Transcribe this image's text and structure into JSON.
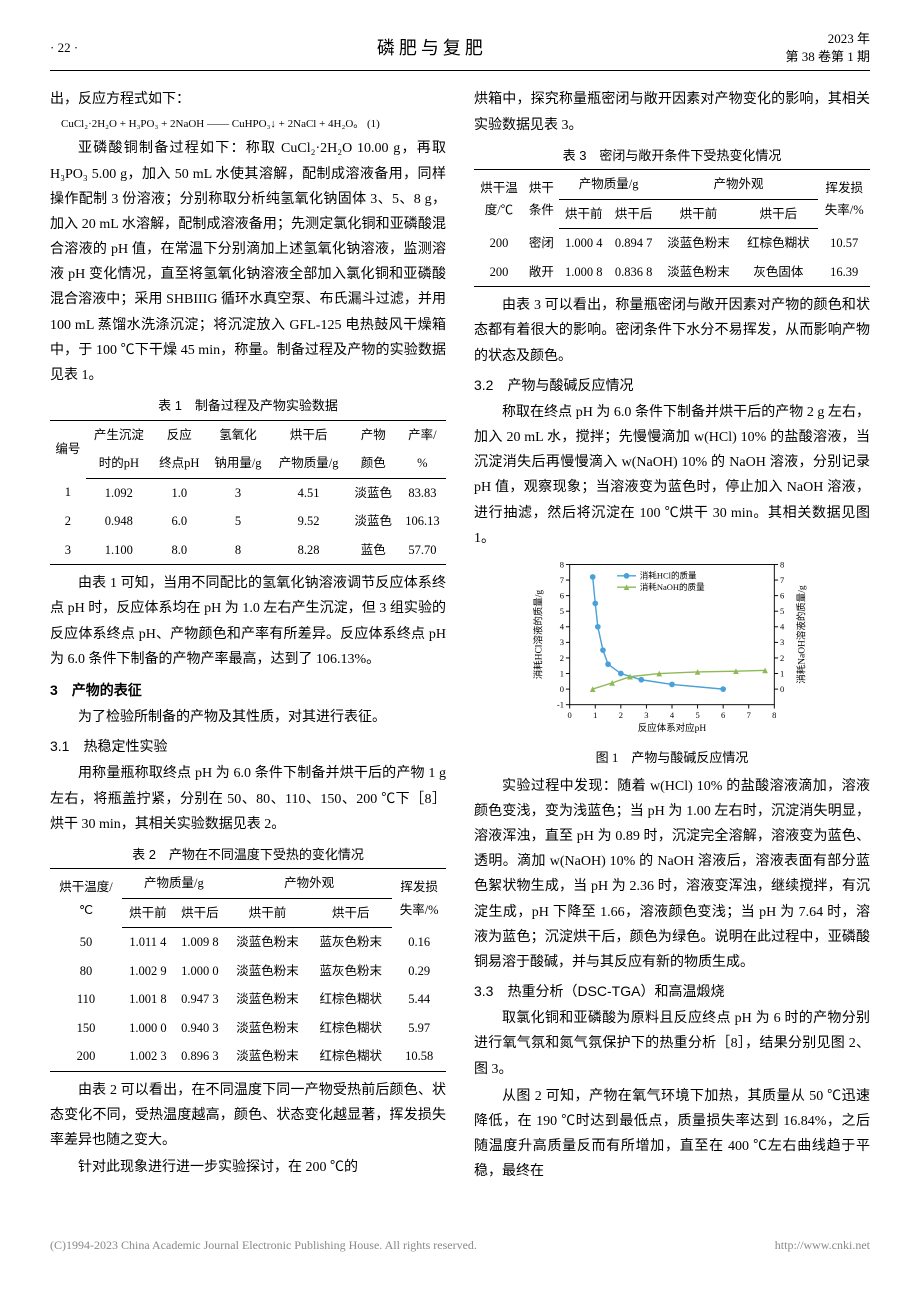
{
  "header": {
    "page_number": "22",
    "journal": "磷肥与复肥",
    "year_line": "2023 年",
    "vol_line": "第 38 卷第 1 期"
  },
  "left": {
    "p1": "出，反应方程式如下：",
    "eq": "CuCl₂·2H₂O + H₃PO₃ + 2NaOH —— CuHPO₃↓ + 2NaCl + 4H₂O。 (1)",
    "p2": "亚磷酸铜制备过程如下：称取 CuCl₂·2H₂O 10.00 g，再取 H₃PO₃ 5.00 g，加入 50 mL 水使其溶解，配制成溶液备用，同样操作配制 3 份溶液；分别称取分析纯氢氧化钠固体 3、5、8 g，加入 20 mL 水溶解，配制成溶液备用；先测定氯化铜和亚磷酸混合溶液的 pH 值，在常温下分别滴加上述氢氧化钠溶液，监测溶液 pH 变化情况，直至将氢氧化钠溶液全部加入氯化铜和亚磷酸混合溶液中；采用 SHBIIIG 循环水真空泵、布氏漏斗过滤，并用 100 mL 蒸馏水洗涤沉淀；将沉淀放入 GFL-125 电热鼓风干燥箱中，于 100 ℃下干燥 45 min，称量。制备过程及产物的实验数据见表 1。",
    "t1_caption": "表 1　制备过程及产物实验数据",
    "t1": {
      "headers_row1": [
        "编号",
        "产生沉淀时的pH",
        "反应终点pH",
        "氢氧化钠用量/g",
        "烘干后产物质量/g",
        "产物颜色",
        "产率/%"
      ],
      "rows": [
        [
          "1",
          "1.092",
          "1.0",
          "3",
          "4.51",
          "淡蓝色",
          "83.83"
        ],
        [
          "2",
          "0.948",
          "6.0",
          "5",
          "9.52",
          "淡蓝色",
          "106.13"
        ],
        [
          "3",
          "1.100",
          "8.0",
          "8",
          "8.28",
          "蓝色",
          "57.70"
        ]
      ]
    },
    "p3": "由表 1 可知，当用不同配比的氢氧化钠溶液调节反应体系终点 pH 时，反应体系均在 pH 为 1.0 左右产生沉淀，但 3 组实验的反应体系终点 pH、产物颜色和产率有所差异。反应体系终点 pH 为 6.0 条件下制备的产物产率最高，达到了 106.13%。",
    "s3_title": "3　产物的表征",
    "p4": "为了检验所制备的产物及其性质，对其进行表征。",
    "s31_title": "3.1　热稳定性实验",
    "p5": "用称量瓶称取终点 pH 为 6.0 条件下制备并烘干后的产物 1 g 左右，将瓶盖拧紧，分别在 50、80、110、150、200 ℃下［8］烘干 30 min，其相关实验数据见表 2。",
    "t2_caption": "表 2　产物在不同温度下受热的变化情况",
    "t2": {
      "headers_top": [
        "烘干温度/℃",
        "产物质量/g",
        "产物外观",
        "挥发损失率/%"
      ],
      "headers_sub": [
        "烘干前",
        "烘干后",
        "烘干前",
        "烘干后"
      ],
      "rows": [
        [
          "50",
          "1.011 4",
          "1.009 8",
          "淡蓝色粉末",
          "蓝灰色粉末",
          "0.16"
        ],
        [
          "80",
          "1.002 9",
          "1.000 0",
          "淡蓝色粉末",
          "蓝灰色粉末",
          "0.29"
        ],
        [
          "110",
          "1.001 8",
          "0.947 3",
          "淡蓝色粉末",
          "红棕色糊状",
          "5.44"
        ],
        [
          "150",
          "1.000 0",
          "0.940 3",
          "淡蓝色粉末",
          "红棕色糊状",
          "5.97"
        ],
        [
          "200",
          "1.002 3",
          "0.896 3",
          "淡蓝色粉末",
          "红棕色糊状",
          "10.58"
        ]
      ]
    },
    "p6": "由表 2 可以看出，在不同温度下同一产物受热前后颜色、状态变化不同，受热温度越高，颜色、状态变化越显著，挥发损失率差异也随之变大。",
    "p7": "针对此现象进行进一步实验探讨，在 200 ℃的"
  },
  "right": {
    "p1": "烘箱中，探究称量瓶密闭与敞开因素对产物变化的影响，其相关实验数据见表 3。",
    "t3_caption": "表 3　密闭与敞开条件下受热变化情况",
    "t3": {
      "headers_top": [
        "烘干温度/℃",
        "烘干条件",
        "产物质量/g",
        "产物外观",
        "挥发损失率/%"
      ],
      "headers_sub": [
        "烘干前",
        "烘干后",
        "烘干前",
        "烘干后"
      ],
      "rows": [
        [
          "200",
          "密闭",
          "1.000 4",
          "0.894 7",
          "淡蓝色粉末",
          "红棕色糊状",
          "10.57"
        ],
        [
          "200",
          "敞开",
          "1.000 8",
          "0.836 8",
          "淡蓝色粉末",
          "灰色固体",
          "16.39"
        ]
      ]
    },
    "p2": "由表 3 可以看出，称量瓶密闭与敞开因素对产物的颜色和状态都有着很大的影响。密闭条件下水分不易挥发，从而影响产物的状态及颜色。",
    "s32_title": "3.2　产物与酸碱反应情况",
    "p3": "称取在终点 pH 为 6.0 条件下制备并烘干后的产物 2 g 左右，加入 20 mL 水，搅拌；先慢慢滴加 w(HCl) 10% 的盐酸溶液，当沉淀消失后再慢慢滴入 w(NaOH) 10% 的 NaOH 溶液，分别记录 pH 值，观察现象；当溶液变为蓝色时，停止加入 NaOH 溶液，进行抽滤，然后将沉淀在 100 ℃烘干 30 min。其相关数据见图 1。",
    "fig1": {
      "type": "line-scatter",
      "xlabel": "反应体系对应pH",
      "ylabel_left": "消耗HCl溶液的质量/g",
      "ylabel_right": "消耗NaOH溶液的质量/g",
      "xlim": [
        0,
        8
      ],
      "ylim_left": [
        -1,
        8
      ],
      "ylim_right": [
        0,
        8
      ],
      "xticks": [
        0,
        1,
        2,
        3,
        4,
        5,
        6,
        7,
        8
      ],
      "yticks_left": [
        -1,
        0,
        1,
        2,
        3,
        4,
        5,
        6,
        7,
        8
      ],
      "legend": [
        "消耗HCl的质量",
        "消耗NaOH的质量"
      ],
      "series_hcl": {
        "color": "#4aa0d8",
        "marker": "circle",
        "x": [
          6.0,
          4.0,
          2.8,
          2.0,
          1.5,
          1.3,
          1.1,
          1.0,
          0.9
        ],
        "y": [
          0.0,
          0.3,
          0.6,
          1.0,
          1.6,
          2.5,
          4.0,
          5.5,
          7.2
        ]
      },
      "series_naoh": {
        "color": "#8fb958",
        "marker": "triangle",
        "x": [
          0.9,
          1.66,
          2.36,
          3.5,
          5.0,
          6.5,
          7.64
        ],
        "y": [
          0.0,
          0.4,
          0.8,
          1.0,
          1.1,
          1.15,
          1.2
        ]
      },
      "background_color": "#ffffff",
      "axis_color": "#000000",
      "tick_fontsize": 9
    },
    "fig1_caption": "图 1　产物与酸碱反应情况",
    "p4": "实验过程中发现：随着 w(HCl) 10% 的盐酸溶液滴加，溶液颜色变浅，变为浅蓝色；当 pH 为 1.00 左右时，沉淀消失明显，溶液浑浊，直至 pH 为 0.89 时，沉淀完全溶解，溶液变为蓝色、透明。滴加 w(NaOH) 10% 的 NaOH 溶液后，溶液表面有部分蓝色絮状物生成，当 pH 为 2.36 时，溶液变浑浊，继续搅拌，有沉淀生成，pH 下降至 1.66，溶液颜色变浅；当 pH 为 7.64 时，溶液为蓝色；沉淀烘干后，颜色为绿色。说明在此过程中，亚磷酸铜易溶于酸碱，并与其反应有新的物质生成。",
    "s33_title": "3.3　热重分析（DSC-TGA）和高温煅烧",
    "p5": "取氯化铜和亚磷酸为原料且反应终点 pH 为 6 时的产物分别进行氧气氛和氮气氛保护下的热重分析［8］，结果分别见图 2、图 3。",
    "p6": "从图 2 可知，产物在氧气环境下加热，其质量从 50 ℃迅速降低，在 190 ℃时达到最低点，质量损失率达到 16.84%，之后随温度升高质量反而有所增加，直至在 400 ℃左右曲线趋于平稳，最终在"
  },
  "footer": {
    "left": "(C)1994-2023 China Academic Journal Electronic Publishing House. All rights reserved.",
    "right": "http://www.cnki.net"
  }
}
